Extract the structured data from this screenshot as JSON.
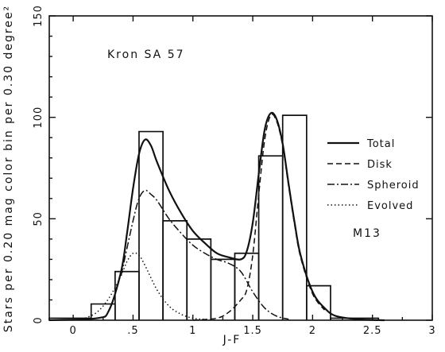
{
  "chart_data": {
    "type": "line",
    "title": "",
    "xlabel": "J-F",
    "ylabel": "Stars per 0.20 mag color bin per 0.30 degree²",
    "xlim": [
      -0.2,
      3.0
    ],
    "ylim": [
      0,
      150
    ],
    "x_ticks": [
      {
        "value": 0,
        "label": "0"
      },
      {
        "value": 0.5,
        "label": ".5"
      },
      {
        "value": 1.0,
        "label": "1"
      },
      {
        "value": 1.5,
        "label": "1.5"
      },
      {
        "value": 2.0,
        "label": "2"
      },
      {
        "value": 2.5,
        "label": "2.5"
      },
      {
        "value": 3.0,
        "label": "3"
      }
    ],
    "y_ticks": [
      {
        "value": 0,
        "label": "0"
      },
      {
        "value": 50,
        "label": "50"
      },
      {
        "value": 100,
        "label": "100"
      },
      {
        "value": 150,
        "label": "150"
      }
    ],
    "annotations": [
      {
        "text": "Kron  SA  57"
      },
      {
        "text": "M13"
      }
    ],
    "histogram": {
      "name": "M13",
      "bin_width": 0.2,
      "bins": [
        {
          "x0": -0.2,
          "x1": 0.15,
          "value": 1
        },
        {
          "x0": 0.15,
          "x1": 0.35,
          "value": 8
        },
        {
          "x0": 0.35,
          "x1": 0.55,
          "value": 24
        },
        {
          "x0": 0.55,
          "x1": 0.75,
          "value": 93
        },
        {
          "x0": 0.75,
          "x1": 0.95,
          "value": 49
        },
        {
          "x0": 0.95,
          "x1": 1.15,
          "value": 40
        },
        {
          "x0": 1.15,
          "x1": 1.35,
          "value": 30
        },
        {
          "x0": 1.35,
          "x1": 1.55,
          "value": 33
        },
        {
          "x0": 1.55,
          "x1": 1.75,
          "value": 81
        },
        {
          "x0": 1.75,
          "x1": 1.95,
          "value": 101
        },
        {
          "x0": 1.95,
          "x1": 2.15,
          "value": 17
        },
        {
          "x0": 2.15,
          "x1": 2.55,
          "value": 1
        }
      ]
    },
    "series": [
      {
        "name": "Total",
        "style": "solid",
        "x": [
          -0.2,
          0.2,
          0.3,
          0.4,
          0.45,
          0.5,
          0.55,
          0.6,
          0.65,
          0.7,
          0.8,
          0.9,
          1.0,
          1.1,
          1.2,
          1.3,
          1.4,
          1.45,
          1.5,
          1.55,
          1.6,
          1.65,
          1.7,
          1.75,
          1.8,
          1.85,
          1.9,
          2.0,
          2.1,
          2.2,
          2.4,
          2.6
        ],
        "y": [
          0,
          1,
          5,
          24,
          43,
          65,
          82,
          89,
          86,
          78,
          64,
          53,
          44,
          38,
          33,
          31,
          30,
          34,
          48,
          72,
          94,
          102,
          99,
          87,
          67,
          48,
          32,
          14,
          6,
          2,
          0.4,
          0
        ]
      },
      {
        "name": "Disk",
        "style": "dashed",
        "x": [
          1.0,
          1.2,
          1.3,
          1.4,
          1.45,
          1.5,
          1.55,
          1.6,
          1.65,
          1.7,
          1.75,
          1.8,
          1.85,
          1.9,
          2.0,
          2.1
        ],
        "y": [
          0,
          1,
          4,
          10,
          15,
          32,
          62,
          89,
          101,
          98,
          86,
          66,
          47,
          31,
          13,
          5
        ]
      },
      {
        "name": "Spheroid",
        "style": "dashdot",
        "x": [
          0.4,
          0.5,
          0.55,
          0.6,
          0.65,
          0.7,
          0.8,
          0.9,
          1.0,
          1.1,
          1.2,
          1.3,
          1.4,
          1.5,
          1.6,
          1.7,
          1.8
        ],
        "y": [
          22,
          49,
          60,
          64,
          62,
          59,
          50,
          43,
          37,
          33,
          30,
          28,
          24,
          14,
          6,
          2,
          0.5
        ]
      },
      {
        "name": "Evolved",
        "style": "dotted",
        "x": [
          0.1,
          0.2,
          0.3,
          0.4,
          0.45,
          0.5,
          0.55,
          0.6,
          0.7,
          0.8,
          0.9,
          1.0,
          1.1,
          1.2
        ],
        "y": [
          1,
          4,
          11,
          22,
          29,
          33,
          32,
          27,
          15,
          7,
          3,
          1,
          0.4,
          0
        ]
      }
    ],
    "legend": {
      "placement": "right",
      "entries": [
        {
          "label": "Total",
          "style": "solid"
        },
        {
          "label": "Disk",
          "style": "dashed"
        },
        {
          "label": "Spheroid",
          "style": "dashdot"
        },
        {
          "label": "Evolved",
          "style": "dotted"
        }
      ]
    },
    "grid": false,
    "colors": {
      "ink": "#111111",
      "background": "#ffffff"
    }
  }
}
